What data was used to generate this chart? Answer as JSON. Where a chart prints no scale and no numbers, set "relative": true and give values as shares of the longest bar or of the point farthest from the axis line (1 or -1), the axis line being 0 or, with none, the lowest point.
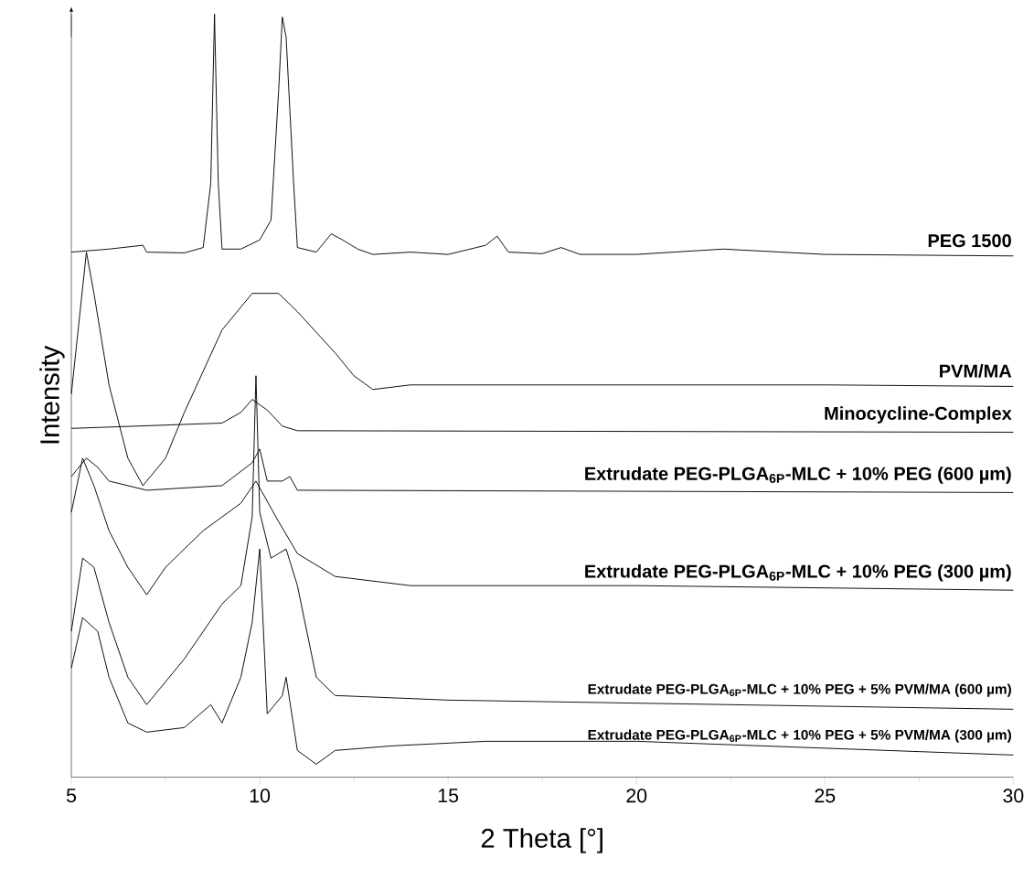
{
  "chart_data": {
    "type": "line",
    "relative": true,
    "xlabel": "2 Theta [°]",
    "ylabel": "Intensity",
    "xlim": [
      5,
      30
    ],
    "xticks": [
      5,
      10,
      15,
      20,
      25,
      30
    ],
    "series": [
      {
        "name": "PEG 1500",
        "color": "#000000",
        "x": [
          5,
          6,
          6.9,
          7,
          8,
          8.5,
          8.7,
          8.8,
          8.9,
          9.0,
          9.5,
          10,
          10.3,
          10.5,
          10.6,
          10.7,
          10.9,
          11.0,
          11.5,
          11.9,
          12.2,
          12.6,
          13,
          14,
          15,
          16,
          16.3,
          16.6,
          17.5,
          18,
          18.5,
          20,
          22.3,
          25,
          30
        ],
        "values": [
          0.688,
          0.692,
          0.697,
          0.688,
          0.687,
          0.694,
          0.778,
          1.0,
          0.778,
          0.692,
          0.692,
          0.704,
          0.73,
          0.898,
          0.996,
          0.97,
          0.778,
          0.694,
          0.688,
          0.712,
          0.704,
          0.692,
          0.685,
          0.688,
          0.685,
          0.697,
          0.709,
          0.688,
          0.686,
          0.694,
          0.685,
          0.685,
          0.692,
          0.685,
          0.683
        ]
      },
      {
        "name": "PVM/MA",
        "color": "#000000",
        "x": [
          5,
          5.4,
          5.6,
          6,
          6.5,
          6.9,
          7.5,
          8,
          9,
          9.8,
          10.5,
          11,
          12,
          12.5,
          13,
          14,
          16,
          20,
          25,
          30
        ],
        "values": [
          0.502,
          0.688,
          0.634,
          0.514,
          0.418,
          0.382,
          0.418,
          0.478,
          0.586,
          0.634,
          0.634,
          0.61,
          0.556,
          0.526,
          0.508,
          0.514,
          0.514,
          0.514,
          0.514,
          0.512
        ]
      },
      {
        "name": "Minocycline-Complex",
        "color": "#000000",
        "x": [
          5,
          9,
          9.5,
          9.8,
          10.2,
          10.6,
          11,
          30
        ],
        "values": [
          0.457,
          0.464,
          0.478,
          0.495,
          0.481,
          0.46,
          0.454,
          0.452
        ]
      },
      {
        "name": "Extrudate PEG-PLGA$_{6P}$-MLC + 10% PEG (600 µm)",
        "color": "#000000",
        "x": [
          5,
          5.4,
          5.7,
          6,
          7,
          9,
          9.8,
          10,
          10.2,
          10.6,
          10.8,
          11,
          30
        ],
        "values": [
          0.394,
          0.418,
          0.406,
          0.388,
          0.376,
          0.382,
          0.412,
          0.43,
          0.388,
          0.388,
          0.394,
          0.376,
          0.373
        ]
      },
      {
        "name": "Extrudate PEG-PLGA$_{6P}$-MLC + 10% PEG (300 µm)",
        "color": "#000000",
        "x": [
          5,
          5.3,
          5.6,
          6,
          6.5,
          7,
          7.5,
          8.5,
          9.5,
          9.9,
          10.5,
          11,
          12,
          14,
          20,
          30
        ],
        "values": [
          0.347,
          0.418,
          0.382,
          0.323,
          0.275,
          0.239,
          0.275,
          0.323,
          0.359,
          0.388,
          0.335,
          0.293,
          0.263,
          0.251,
          0.251,
          0.245
        ]
      },
      {
        "name": "Extrudate PEG-PLGA$_{6P}$-MLC + 10% PEG + 5% PVM/MA (600 µm)",
        "color": "#000000",
        "x": [
          5,
          5.3,
          5.6,
          6,
          6.5,
          7,
          8,
          9,
          9.5,
          9.8,
          9.9,
          10.0,
          10.3,
          10.7,
          11,
          11.5,
          12,
          15,
          30
        ],
        "values": [
          0.191,
          0.287,
          0.275,
          0.203,
          0.131,
          0.095,
          0.155,
          0.227,
          0.251,
          0.341,
          0.526,
          0.347,
          0.287,
          0.299,
          0.251,
          0.131,
          0.107,
          0.101,
          0.089
        ]
      },
      {
        "name": "Extrudate PEG-PLGA$_{6P}$-MLC + 10% PEG + 5% PVM/MA (300 µm)",
        "color": "#000000",
        "x": [
          5,
          5.3,
          5.7,
          6,
          6.5,
          7,
          8,
          8.7,
          9,
          9.5,
          9.8,
          10,
          10.2,
          10.6,
          10.7,
          11,
          11.5,
          12,
          13.5,
          16,
          20,
          30
        ],
        "values": [
          0.143,
          0.209,
          0.191,
          0.131,
          0.071,
          0.059,
          0.065,
          0.095,
          0.071,
          0.131,
          0.203,
          0.299,
          0.083,
          0.107,
          0.131,
          0.035,
          0.017,
          0.035,
          0.041,
          0.047,
          0.047,
          0.029
        ]
      }
    ]
  }
}
